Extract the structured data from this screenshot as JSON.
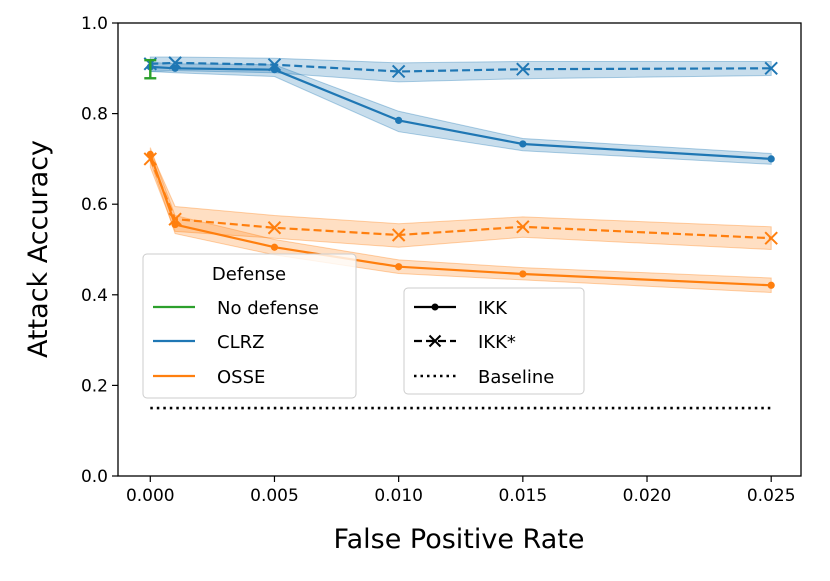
{
  "chart_data": {
    "type": "line",
    "title": "",
    "xlabel": "False Positive Rate",
    "ylabel": "Attack Accuracy",
    "xlim": [
      -0.0013,
      0.0262
    ],
    "ylim": [
      0.0,
      1.0
    ],
    "xticks": [
      0.0,
      0.005,
      0.01,
      0.015,
      0.02,
      0.025
    ],
    "xtick_labels": [
      "0.000",
      "0.005",
      "0.010",
      "0.015",
      "0.020",
      "0.025"
    ],
    "yticks": [
      0.0,
      0.2,
      0.4,
      0.6,
      0.8,
      1.0
    ],
    "ytick_labels": [
      "0.0",
      "0.2",
      "0.4",
      "0.6",
      "0.8",
      "1.0"
    ],
    "grid": false,
    "colors": {
      "no_defense": "#2ca02c",
      "clrz": "#1f77b4",
      "osse": "#ff7f0e",
      "baseline": "#000000"
    },
    "series": [
      {
        "id": "clrz-ikk",
        "name": "CLRZ IKK",
        "color": "#1f77b4",
        "linestyle": "solid",
        "marker": "dot",
        "x": [
          0.0,
          0.001,
          0.005,
          0.01,
          0.015,
          0.025
        ],
        "y": [
          0.903,
          0.9,
          0.897,
          0.785,
          0.733,
          0.7
        ],
        "band_lower": [
          0.893,
          0.89,
          0.882,
          0.76,
          0.718,
          0.688
        ],
        "band_upper": [
          0.913,
          0.91,
          0.908,
          0.805,
          0.745,
          0.712
        ]
      },
      {
        "id": "clrz-ikkstar",
        "name": "CLRZ IKK*",
        "color": "#1f77b4",
        "linestyle": "dashed",
        "marker": "x",
        "x": [
          0.0,
          0.001,
          0.005,
          0.01,
          0.015,
          0.025
        ],
        "y": [
          0.91,
          0.912,
          0.908,
          0.893,
          0.898,
          0.9
        ],
        "band_lower": [
          0.893,
          0.895,
          0.89,
          0.87,
          0.877,
          0.884
        ],
        "band_upper": [
          0.925,
          0.925,
          0.922,
          0.912,
          0.915,
          0.915
        ]
      },
      {
        "id": "osse-ikk",
        "name": "OSSE IKK",
        "color": "#ff7f0e",
        "linestyle": "solid",
        "marker": "dot",
        "x": [
          0.0,
          0.001,
          0.005,
          0.01,
          0.015,
          0.025
        ],
        "y": [
          0.71,
          0.555,
          0.505,
          0.462,
          0.446,
          0.421
        ],
        "band_lower": [
          0.695,
          0.535,
          0.488,
          0.447,
          0.433,
          0.405
        ],
        "band_upper": [
          0.725,
          0.575,
          0.522,
          0.477,
          0.46,
          0.437
        ]
      },
      {
        "id": "osse-ikkstar",
        "name": "OSSE IKK*",
        "color": "#ff7f0e",
        "linestyle": "dashed",
        "marker": "x",
        "x": [
          0.0,
          0.001,
          0.005,
          0.01,
          0.015,
          0.025
        ],
        "y": [
          0.7,
          0.567,
          0.548,
          0.532,
          0.55,
          0.525
        ],
        "band_lower": [
          0.682,
          0.54,
          0.525,
          0.505,
          0.527,
          0.5
        ],
        "band_upper": [
          0.718,
          0.595,
          0.575,
          0.557,
          0.572,
          0.55
        ]
      },
      {
        "id": "baseline",
        "name": "Baseline",
        "color": "#000000",
        "linestyle": "dotted",
        "marker": "none",
        "x": [
          0.0,
          0.025
        ],
        "y": [
          0.15,
          0.15
        ]
      }
    ],
    "errorbars": [
      {
        "name": "No defense",
        "color": "#2ca02c",
        "x": 0.0,
        "y": 0.897,
        "lower": 0.878,
        "upper": 0.918
      }
    ],
    "legends": [
      {
        "id": "defense",
        "title": "Defense",
        "location": "center-left",
        "entries": [
          {
            "label": "No defense",
            "color": "#2ca02c"
          },
          {
            "label": "CLRZ",
            "color": "#1f77b4"
          },
          {
            "label": "OSSE",
            "color": "#ff7f0e"
          }
        ]
      },
      {
        "id": "attack",
        "title": "",
        "location": "lower-center",
        "entries": [
          {
            "label": "IKK",
            "linestyle": "solid",
            "marker": "dot"
          },
          {
            "label": "IKK*",
            "linestyle": "dashed",
            "marker": "x"
          },
          {
            "label": "Baseline",
            "linestyle": "dotted",
            "marker": "none"
          }
        ]
      }
    ]
  }
}
